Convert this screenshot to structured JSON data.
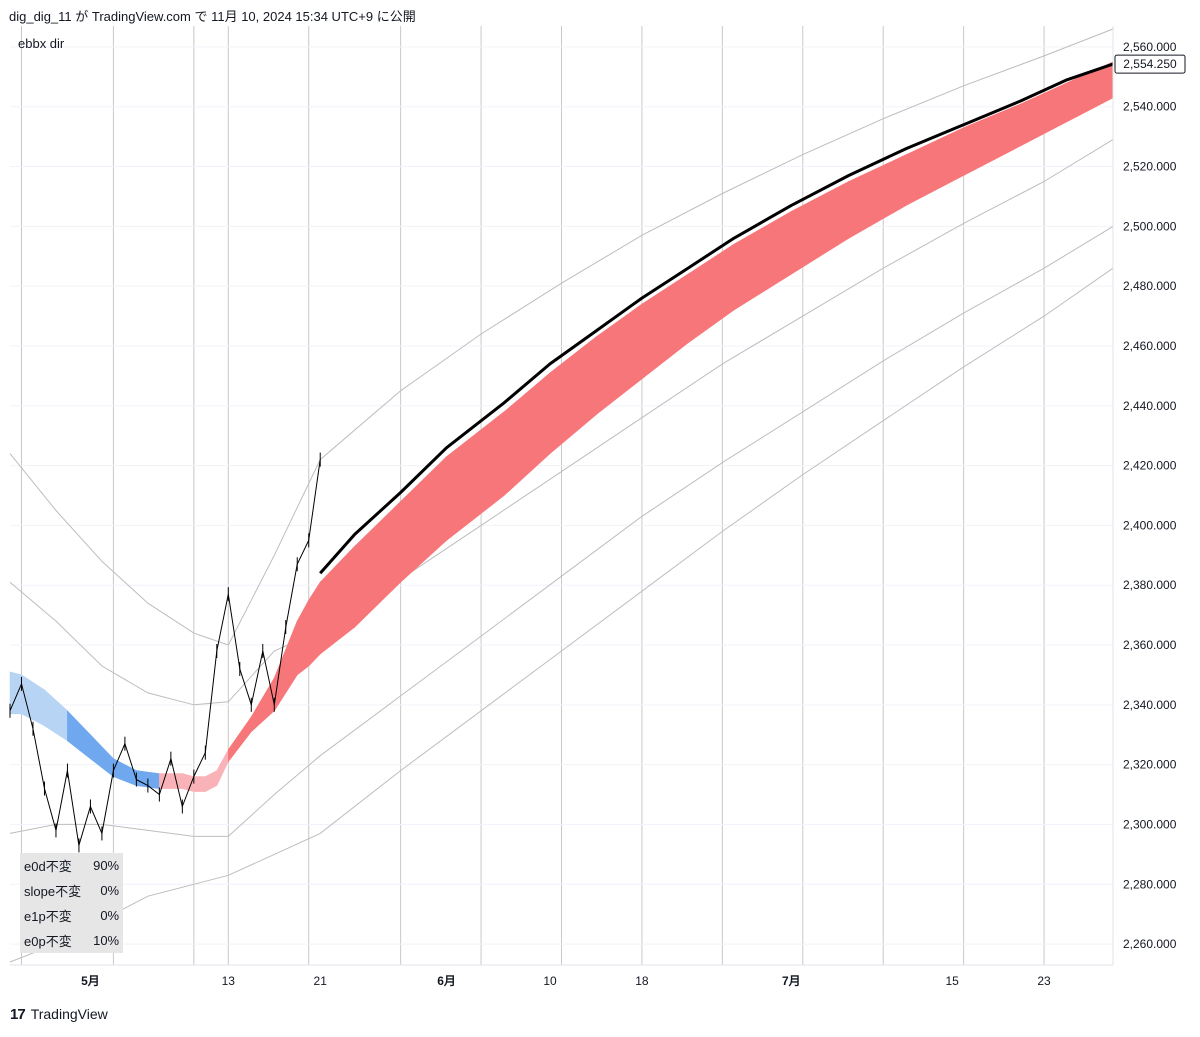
{
  "header": {
    "text": "dig_dig_11 が TradingView.com で 11月 10, 2024 15:34 UTC+9 に公開"
  },
  "indicator": {
    "name": "ebbx dir"
  },
  "footer": {
    "logo": "17",
    "brand": "TradingView"
  },
  "colors": {
    "band_red": "#f7767a",
    "band_pink": "#f9b3b8",
    "band_blue": "#6fa8ee",
    "band_lightblue": "#b8d4f5",
    "grid": "#c8c8c8",
    "envelope": "#bdbdbd",
    "price": "#000000",
    "projection": "#000000"
  },
  "stats_table": [
    {
      "label": "e0d不変",
      "value": "90%"
    },
    {
      "label": "slope不変",
      "value": "0%"
    },
    {
      "label": "e1p不変",
      "value": "0%"
    },
    {
      "label": "e0p不変",
      "value": "10%"
    }
  ],
  "chart_data": {
    "type": "line",
    "title": "ebbx dir",
    "xlabel": "",
    "ylabel": "",
    "ylim": [
      2253,
      2567
    ],
    "y_ticks": [
      2560,
      2540,
      2520,
      2500,
      2480,
      2460,
      2440,
      2420,
      2400,
      2380,
      2360,
      2340,
      2320,
      2300,
      2280,
      2260
    ],
    "y_tick_labels": [
      "2,560.000",
      "2,540.000",
      "2,520.000",
      "2,500.000",
      "2,480.000",
      "2,460.000",
      "2,440.000",
      "2,420.000",
      "2,400.000",
      "2,380.000",
      "2,360.000",
      "2,340.000",
      "2,320.000",
      "2,300.000",
      "2,280.000",
      "2,260.000"
    ],
    "last_price_label": "2,554.250",
    "last_price": 2554.25,
    "x_range": [
      "2024-04-24",
      "2024-07-29"
    ],
    "x_ticks": [
      {
        "date": "2024-05-01",
        "label": "5月",
        "bold": true
      },
      {
        "date": "2024-05-13",
        "label": "13",
        "bold": false
      },
      {
        "date": "2024-05-21",
        "label": "21",
        "bold": false
      },
      {
        "date": "2024-06-01",
        "label": "6月",
        "bold": true
      },
      {
        "date": "2024-06-10",
        "label": "10",
        "bold": false
      },
      {
        "date": "2024-06-18",
        "label": "18",
        "bold": false
      },
      {
        "date": "2024-07-01",
        "label": "7月",
        "bold": true
      },
      {
        "date": "2024-07-15",
        "label": "15",
        "bold": false
      },
      {
        "date": "2024-07-23",
        "label": "23",
        "bold": false
      }
    ],
    "vertical_lines": [
      "2024-04-25",
      "2024-05-03",
      "2024-05-10",
      "2024-05-13",
      "2024-05-20",
      "2024-05-28",
      "2024-06-04",
      "2024-06-11",
      "2024-06-18",
      "2024-06-25",
      "2024-07-02",
      "2024-07-09",
      "2024-07-16",
      "2024-07-23",
      "2024-07-29"
    ],
    "grid": true,
    "series": [
      {
        "type": "price",
        "x": [
          "2024-04-24",
          "2024-04-25",
          "2024-04-26",
          "2024-04-27",
          "2024-04-28",
          "2024-04-29",
          "2024-04-30",
          "2024-05-01",
          "2024-05-02",
          "2024-05-03",
          "2024-05-04",
          "2024-05-05",
          "2024-05-06",
          "2024-05-07",
          "2024-05-08",
          "2024-05-09",
          "2024-05-10",
          "2024-05-11",
          "2024-05-12",
          "2024-05-13",
          "2024-05-14",
          "2024-05-15",
          "2024-05-16",
          "2024-05-17",
          "2024-05-18",
          "2024-05-19",
          "2024-05-20",
          "2024-05-21"
        ],
        "values": [
          2338,
          2347,
          2332,
          2312,
          2298,
          2318,
          2293,
          2306,
          2297,
          2318,
          2327,
          2315,
          2313,
          2310,
          2322,
          2306,
          2316,
          2324,
          2358,
          2377,
          2352,
          2340,
          2358,
          2340,
          2366,
          2387,
          2395,
          2422
        ]
      },
      {
        "type": "projection",
        "x": [
          "2024-05-21",
          "2024-05-24",
          "2024-05-28",
          "2024-06-01",
          "2024-06-06",
          "2024-06-10",
          "2024-06-14",
          "2024-06-18",
          "2024-06-22",
          "2024-06-26",
          "2024-07-01",
          "2024-07-06",
          "2024-07-11",
          "2024-07-16",
          "2024-07-21",
          "2024-07-25",
          "2024-07-29"
        ],
        "values": [
          2384,
          2397,
          2411,
          2426,
          2441,
          2454,
          2465,
          2476,
          2486,
          2496,
          2507,
          2517,
          2526,
          2534,
          2542,
          2549,
          2554.25
        ]
      }
    ],
    "band": {
      "x": [
        "2024-04-24",
        "2024-04-25",
        "2024-04-27",
        "2024-04-29",
        "2024-05-01",
        "2024-05-03",
        "2024-05-05",
        "2024-05-07",
        "2024-05-09",
        "2024-05-10",
        "2024-05-11",
        "2024-05-12",
        "2024-05-13",
        "2024-05-15",
        "2024-05-17",
        "2024-05-19",
        "2024-05-20",
        "2024-05-21",
        "2024-05-24",
        "2024-05-28",
        "2024-06-01",
        "2024-06-06",
        "2024-06-10",
        "2024-06-14",
        "2024-06-18",
        "2024-06-22",
        "2024-06-26",
        "2024-07-01",
        "2024-07-06",
        "2024-07-11",
        "2024-07-16",
        "2024-07-21",
        "2024-07-25",
        "2024-07-29"
      ],
      "upper": [
        2351,
        2350,
        2345,
        2338,
        2330,
        2322,
        2318,
        2317,
        2317,
        2316,
        2316,
        2318,
        2325,
        2336,
        2349,
        2368,
        2375,
        2381,
        2393,
        2408,
        2423,
        2438,
        2451,
        2463,
        2474,
        2484,
        2494,
        2505,
        2515,
        2524,
        2533,
        2541,
        2548,
        2555
      ],
      "lower": [
        2337,
        2337,
        2333,
        2328,
        2322,
        2316,
        2313,
        2312,
        2312,
        2311,
        2311,
        2313,
        2321,
        2331,
        2338,
        2350,
        2353,
        2357,
        2366,
        2381,
        2395,
        2410,
        2424,
        2437,
        2449,
        2461,
        2472,
        2484,
        2496,
        2507,
        2517,
        2527,
        2535,
        2543
      ],
      "colors": [
        "lightblue",
        "lightblue",
        "lightblue",
        "blue",
        "blue",
        "blue",
        "blue",
        "pink",
        "pink",
        "pink",
        "pink",
        "pink",
        "red",
        "red",
        "red",
        "red",
        "red",
        "red",
        "red",
        "red",
        "red",
        "red",
        "red",
        "red",
        "red",
        "red",
        "red",
        "red",
        "red",
        "red",
        "red",
        "red",
        "red",
        "red"
      ]
    },
    "envelopes": [
      {
        "x": [
          "2024-04-24",
          "2024-04-28",
          "2024-05-02",
          "2024-05-06",
          "2024-05-10",
          "2024-05-13",
          "2024-05-17",
          "2024-05-21",
          "2024-05-28",
          "2024-06-04",
          "2024-06-11",
          "2024-06-18",
          "2024-06-25",
          "2024-07-02",
          "2024-07-09",
          "2024-07-16",
          "2024-07-23",
          "2024-07-29"
        ],
        "values": [
          2424,
          2405,
          2388,
          2374,
          2364,
          2360,
          2390,
          2422,
          2445,
          2464,
          2481,
          2497,
          2511,
          2524,
          2536,
          2547,
          2557,
          2566
        ]
      },
      {
        "x": [
          "2024-04-24",
          "2024-04-28",
          "2024-05-02",
          "2024-05-06",
          "2024-05-10",
          "2024-05-13",
          "2024-05-17",
          "2024-05-21",
          "2024-05-28",
          "2024-06-04",
          "2024-06-11",
          "2024-06-18",
          "2024-06-25",
          "2024-07-02",
          "2024-07-09",
          "2024-07-16",
          "2024-07-23",
          "2024-07-29"
        ],
        "values": [
          2381,
          2368,
          2353,
          2344,
          2340,
          2341,
          2358,
          2365,
          2382,
          2400,
          2418,
          2436,
          2454,
          2470,
          2486,
          2501,
          2515,
          2529
        ]
      },
      {
        "x": [
          "2024-04-24",
          "2024-04-28",
          "2024-05-02",
          "2024-05-06",
          "2024-05-10",
          "2024-05-13",
          "2024-05-17",
          "2024-05-21",
          "2024-05-28",
          "2024-06-04",
          "2024-06-11",
          "2024-06-18",
          "2024-06-25",
          "2024-07-02",
          "2024-07-09",
          "2024-07-16",
          "2024-07-23",
          "2024-07-29"
        ],
        "values": [
          2297,
          2300,
          2300,
          2298,
          2296,
          2296,
          2310,
          2323,
          2343,
          2363,
          2383,
          2403,
          2421,
          2438,
          2455,
          2471,
          2486,
          2500
        ]
      },
      {
        "x": [
          "2024-04-24",
          "2024-04-28",
          "2024-05-02",
          "2024-05-06",
          "2024-05-10",
          "2024-05-13",
          "2024-05-17",
          "2024-05-21",
          "2024-05-28",
          "2024-06-04",
          "2024-06-11",
          "2024-06-18",
          "2024-06-25",
          "2024-07-02",
          "2024-07-09",
          "2024-07-16",
          "2024-07-23",
          "2024-07-29"
        ],
        "values": [
          2254,
          2260,
          2268,
          2276,
          2280,
          2283,
          2290,
          2297,
          2318,
          2338,
          2358,
          2378,
          2398,
          2417,
          2435,
          2453,
          2470,
          2486
        ]
      }
    ]
  }
}
